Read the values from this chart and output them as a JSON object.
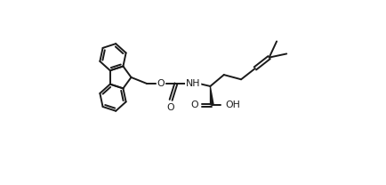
{
  "bg_color": "#ffffff",
  "line_color": "#1a1a1a",
  "lw": 1.4,
  "figsize": [
    4.35,
    2.08
  ],
  "dpi": 100,
  "xlim": [
    0,
    8.7
  ],
  "ylim": [
    0,
    4.16
  ]
}
